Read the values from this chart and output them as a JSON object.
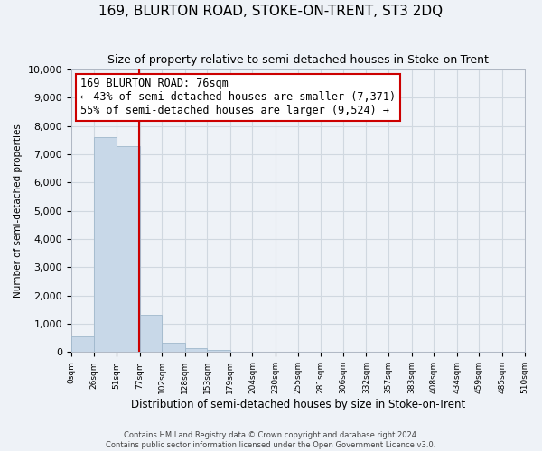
{
  "title": "169, BLURTON ROAD, STOKE-ON-TRENT, ST3 2DQ",
  "subtitle": "Size of property relative to semi-detached houses in Stoke-on-Trent",
  "xlabel": "Distribution of semi-detached houses by size in Stoke-on-Trent",
  "ylabel": "Number of semi-detached properties",
  "footer_line1": "Contains HM Land Registry data © Crown copyright and database right 2024.",
  "footer_line2": "Contains public sector information licensed under the Open Government Licence v3.0.",
  "bar_edges": [
    0,
    26,
    51,
    77,
    102,
    128,
    153,
    179,
    204,
    230,
    255,
    281,
    306,
    332,
    357,
    383,
    408,
    434,
    459,
    485,
    510
  ],
  "bar_heights": [
    550,
    7600,
    7280,
    1330,
    340,
    130,
    80,
    0,
    0,
    0,
    0,
    0,
    0,
    0,
    0,
    0,
    0,
    0,
    0,
    0
  ],
  "bar_color": "#c8d8e8",
  "bar_edgecolor": "#a0b8cc",
  "vline_x": 76,
  "vline_color": "#cc0000",
  "ylim": [
    0,
    10000
  ],
  "yticks": [
    0,
    1000,
    2000,
    3000,
    4000,
    5000,
    6000,
    7000,
    8000,
    9000,
    10000
  ],
  "xtick_labels": [
    "0sqm",
    "26sqm",
    "51sqm",
    "77sqm",
    "102sqm",
    "128sqm",
    "153sqm",
    "179sqm",
    "204sqm",
    "230sqm",
    "255sqm",
    "281sqm",
    "306sqm",
    "332sqm",
    "357sqm",
    "383sqm",
    "408sqm",
    "434sqm",
    "459sqm",
    "485sqm",
    "510sqm"
  ],
  "annotation_box_text_line1": "169 BLURTON ROAD: 76sqm",
  "annotation_box_text_line2": "← 43% of semi-detached houses are smaller (7,371)",
  "annotation_box_text_line3": "55% of semi-detached houses are larger (9,524) →",
  "annotation_box_edgecolor": "#cc0000",
  "annotation_box_facecolor": "#ffffff",
  "grid_color": "#d0d8e0",
  "background_color": "#eef2f7",
  "title_fontsize": 11,
  "subtitle_fontsize": 9,
  "annotation_fontsize": 8.5
}
